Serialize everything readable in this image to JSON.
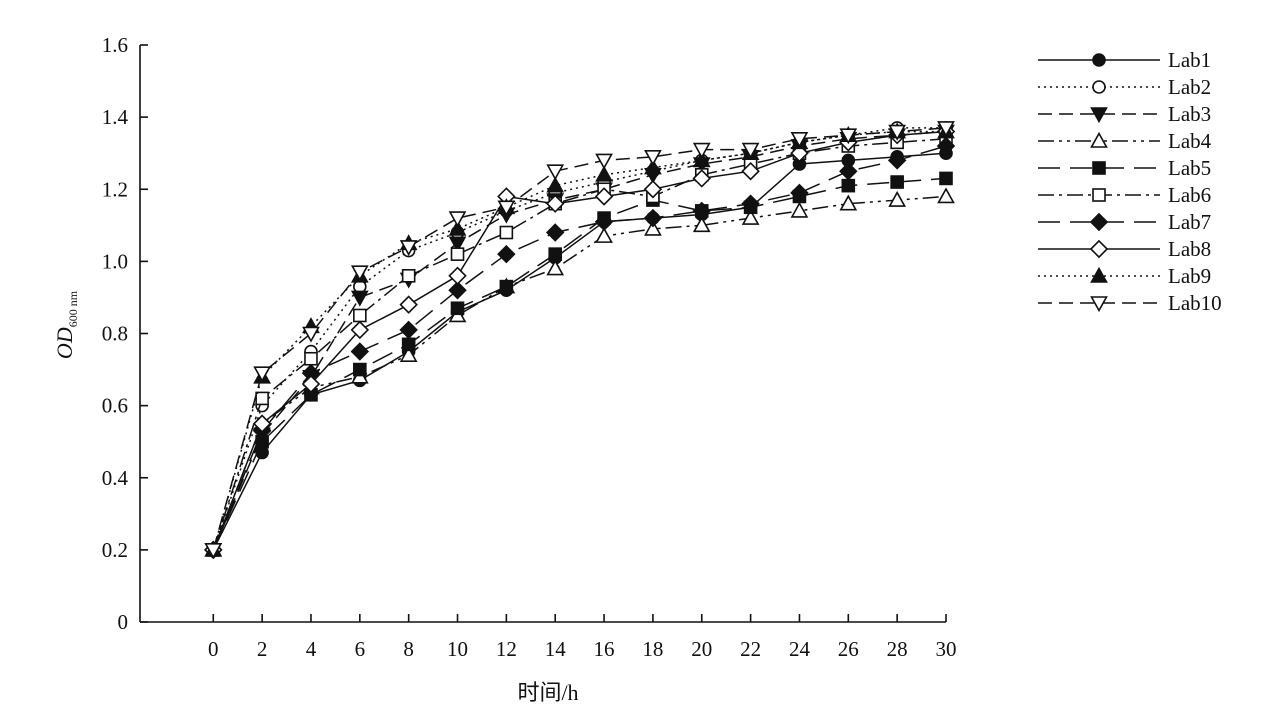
{
  "chart_data": {
    "type": "line",
    "xlabel": "时间/h",
    "ylabel_main": "OD",
    "ylabel_sub": "600 nm",
    "x": [
      0,
      2,
      4,
      6,
      8,
      10,
      12,
      14,
      16,
      18,
      20,
      22,
      24,
      26,
      28,
      30
    ],
    "xlim": [
      -3,
      30
    ],
    "ylim": [
      0,
      1.6
    ],
    "x_ticks": [
      0,
      2,
      4,
      6,
      8,
      10,
      12,
      14,
      16,
      18,
      20,
      22,
      24,
      26,
      28,
      30
    ],
    "y_ticks": [
      0,
      0.2,
      0.4,
      0.6,
      0.8,
      1.0,
      1.2,
      1.4,
      1.6
    ],
    "y_tick_labels": [
      "0",
      "0.2",
      "0.4",
      "0.6",
      "0.8",
      "1.0",
      "1.2",
      "1.4",
      "1.6"
    ],
    "grid": false,
    "legend_position": "right",
    "series": [
      {
        "name": "Lab1",
        "marker": "circle",
        "fill": "filled",
        "dash": "solid",
        "values": [
          0.2,
          0.47,
          0.63,
          0.67,
          0.75,
          0.86,
          0.92,
          1.01,
          1.11,
          1.12,
          1.13,
          1.15,
          1.27,
          1.28,
          1.29,
          1.3
        ]
      },
      {
        "name": "Lab2",
        "marker": "circle",
        "fill": "open",
        "dash": "dotted",
        "values": [
          0.2,
          0.6,
          0.75,
          0.93,
          1.03,
          1.08,
          1.14,
          1.19,
          1.22,
          1.25,
          1.28,
          1.3,
          1.33,
          1.35,
          1.37,
          1.37
        ]
      },
      {
        "name": "Lab3",
        "marker": "triangle-down",
        "fill": "filled",
        "dash": "dashed",
        "values": [
          0.2,
          0.52,
          0.68,
          0.9,
          0.95,
          1.05,
          1.13,
          1.17,
          1.2,
          1.24,
          1.27,
          1.29,
          1.32,
          1.34,
          1.35,
          1.36
        ]
      },
      {
        "name": "Lab4",
        "marker": "triangle-up",
        "fill": "open",
        "dash": "dashdotdot",
        "values": [
          0.2,
          0.55,
          0.65,
          0.68,
          0.74,
          0.85,
          0.93,
          0.98,
          1.07,
          1.09,
          1.1,
          1.12,
          1.14,
          1.16,
          1.17,
          1.18
        ]
      },
      {
        "name": "Lab5",
        "marker": "square",
        "fill": "filled",
        "dash": "longdash",
        "values": [
          0.2,
          0.5,
          0.63,
          0.7,
          0.77,
          0.87,
          0.93,
          1.02,
          1.12,
          1.17,
          1.14,
          1.15,
          1.18,
          1.21,
          1.22,
          1.23
        ]
      },
      {
        "name": "Lab6",
        "marker": "square",
        "fill": "open",
        "dash": "dashdot",
        "values": [
          0.2,
          0.62,
          0.73,
          0.85,
          0.96,
          1.02,
          1.08,
          1.16,
          1.2,
          1.18,
          1.24,
          1.27,
          1.3,
          1.32,
          1.33,
          1.34
        ]
      },
      {
        "name": "Lab7",
        "marker": "diamond",
        "fill": "filled",
        "dash": "longdash",
        "values": [
          0.2,
          0.53,
          0.69,
          0.75,
          0.81,
          0.92,
          1.02,
          1.08,
          1.11,
          1.12,
          1.14,
          1.16,
          1.19,
          1.25,
          1.28,
          1.32
        ]
      },
      {
        "name": "Lab8",
        "marker": "diamond",
        "fill": "open",
        "dash": "solid",
        "values": [
          0.2,
          0.55,
          0.66,
          0.81,
          0.88,
          0.96,
          1.18,
          1.16,
          1.18,
          1.2,
          1.23,
          1.25,
          1.3,
          1.33,
          1.35,
          1.36
        ]
      },
      {
        "name": "Lab9",
        "marker": "triangle-up",
        "fill": "filled",
        "dash": "dotted",
        "values": [
          0.2,
          0.68,
          0.82,
          0.96,
          1.05,
          1.09,
          1.15,
          1.21,
          1.24,
          1.26,
          1.28,
          1.3,
          1.33,
          1.35,
          1.36,
          1.36
        ]
      },
      {
        "name": "Lab10",
        "marker": "triangle-down",
        "fill": "open",
        "dash": "dashed",
        "values": [
          0.2,
          0.69,
          0.8,
          0.97,
          1.04,
          1.12,
          1.15,
          1.25,
          1.28,
          1.29,
          1.31,
          1.31,
          1.34,
          1.35,
          1.36,
          1.37
        ]
      }
    ]
  }
}
